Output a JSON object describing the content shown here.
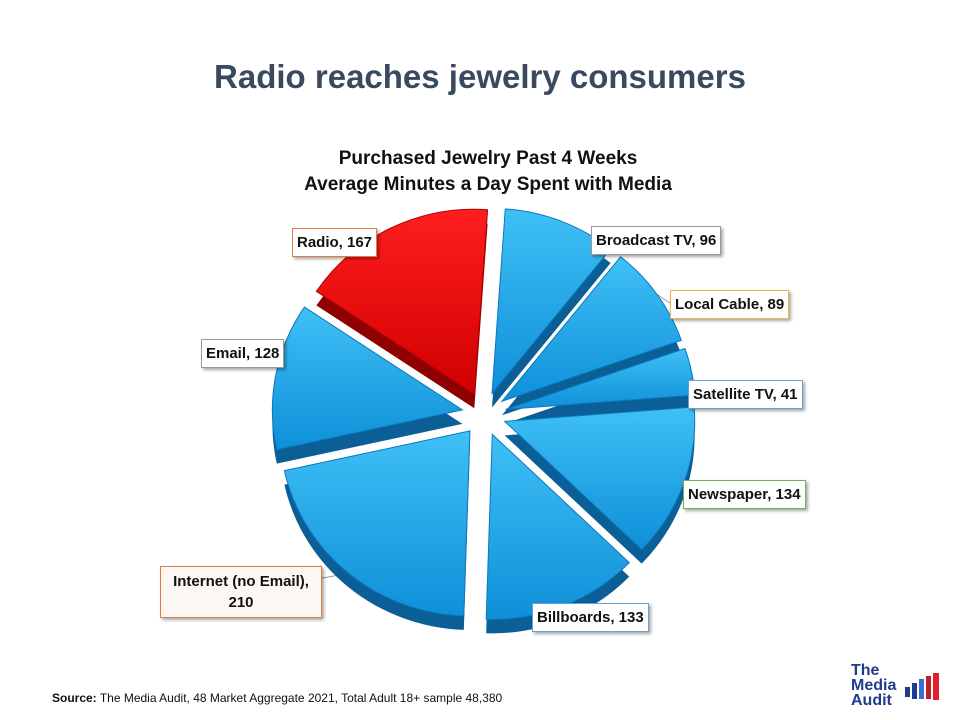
{
  "slide": {
    "title": "Radio reaches jewelry consumers",
    "source_label": "Source:",
    "source_text": "The Media Audit, 48 Market Aggregate 2021, Total Adult 18+ sample 48,380"
  },
  "logo": {
    "line1": "The",
    "line2": "Media",
    "line3": "Audit"
  },
  "chart_data": {
    "type": "pie",
    "title": "Purchased Jewelry Past 4 Weeks",
    "subtitle": "Average Minutes a Day Spent with Media",
    "exploded": true,
    "three_d": true,
    "slices": [
      {
        "label": "Broadcast TV",
        "value": 96,
        "display": "Broadcast TV, 96",
        "color": "#1aa3e8"
      },
      {
        "label": "Local Cable",
        "value": 89,
        "display": "Local Cable, 89",
        "color": "#1aa3e8"
      },
      {
        "label": "Satellite TV",
        "value": 41,
        "display": "Satellite TV, 41",
        "color": "#1aa3e8"
      },
      {
        "label": "Newspaper",
        "value": 134,
        "display": "Newspaper, 134",
        "color": "#1aa3e8"
      },
      {
        "label": "Billboards",
        "value": 133,
        "display": "Billboards, 133",
        "color": "#1aa3e8"
      },
      {
        "label": "Internet (no Email)",
        "value": 210,
        "display_line1": "Internet (no Email),",
        "display_line2": "210",
        "color": "#1aa3e8"
      },
      {
        "label": "Email",
        "value": 128,
        "display": "Email, 128",
        "color": "#1aa3e8"
      },
      {
        "label": "Radio",
        "value": 167,
        "display": "Radio, 167",
        "color": "#e60000"
      }
    ]
  }
}
